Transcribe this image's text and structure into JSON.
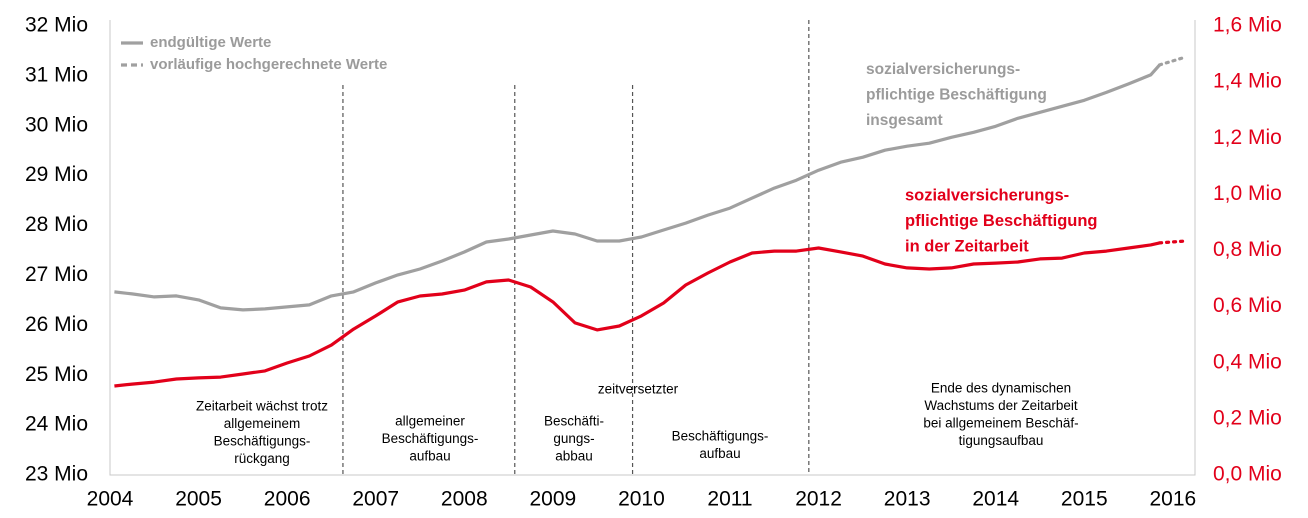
{
  "chart_data": {
    "type": "line",
    "x": [
      2004.05,
      2004.25,
      2004.5,
      2004.75,
      2005,
      2005.25,
      2005.5,
      2005.75,
      2006,
      2006.25,
      2006.5,
      2006.75,
      2007,
      2007.25,
      2007.5,
      2007.75,
      2008,
      2008.25,
      2008.5,
      2008.75,
      2009,
      2009.25,
      2009.5,
      2009.75,
      2010,
      2010.25,
      2010.5,
      2010.75,
      2011,
      2011.25,
      2011.5,
      2011.75,
      2012,
      2012.25,
      2012.5,
      2012.75,
      2013,
      2013.25,
      2013.5,
      2013.75,
      2014,
      2014.25,
      2014.5,
      2014.75,
      2015,
      2015.25,
      2015.5,
      2015.75,
      2015.85,
      2016.15
    ],
    "series": [
      {
        "name": "sozialversicherungs-pflichtige Beschäftigung insgesamt",
        "name_lines": [
          "sozialversicherungs-",
          "pflichtige Beschäftigung",
          "insgesamt"
        ],
        "color": "#a0a0a0",
        "axis": "y",
        "values": [
          26.67,
          26.63,
          26.57,
          26.59,
          26.51,
          26.35,
          26.31,
          26.33,
          26.37,
          26.41,
          26.59,
          26.67,
          26.85,
          27.01,
          27.13,
          27.29,
          27.47,
          27.67,
          27.73,
          27.81,
          27.89,
          27.83,
          27.69,
          27.69,
          27.77,
          27.91,
          28.05,
          28.21,
          28.35,
          28.55,
          28.75,
          28.91,
          29.11,
          29.27,
          29.37,
          29.51,
          29.59,
          29.65,
          29.77,
          29.87,
          29.99,
          30.15,
          30.27,
          30.39,
          30.51,
          30.67,
          30.84,
          31.02,
          31.22,
          null
        ],
        "provisional_values": [
          null,
          null,
          null,
          null,
          null,
          null,
          null,
          null,
          null,
          null,
          null,
          null,
          null,
          null,
          null,
          null,
          null,
          null,
          null,
          null,
          null,
          null,
          null,
          null,
          null,
          null,
          null,
          null,
          null,
          null,
          null,
          null,
          null,
          null,
          null,
          null,
          null,
          null,
          null,
          null,
          null,
          null,
          null,
          null,
          null,
          null,
          null,
          null,
          31.22,
          31.38
        ]
      },
      {
        "name": "sozialversicherungs-pflichtige Beschäftigung in der Zeitarbeit",
        "name_lines": [
          "sozialversicherungs-",
          "pflichtige Beschäftigung",
          "in der Zeitarbeit"
        ],
        "color": "#e2001a",
        "axis": "y2",
        "values": [
          0.317,
          0.324,
          0.331,
          0.342,
          0.346,
          0.349,
          0.36,
          0.371,
          0.399,
          0.424,
          0.463,
          0.52,
          0.567,
          0.617,
          0.638,
          0.645,
          0.659,
          0.688,
          0.695,
          0.67,
          0.617,
          0.542,
          0.517,
          0.531,
          0.567,
          0.613,
          0.677,
          0.72,
          0.759,
          0.791,
          0.798,
          0.798,
          0.809,
          0.795,
          0.78,
          0.752,
          0.738,
          0.734,
          0.738,
          0.752,
          0.755,
          0.759,
          0.77,
          0.773,
          0.791,
          0.798,
          0.809,
          0.82,
          0.827,
          null
        ],
        "provisional_values": [
          null,
          null,
          null,
          null,
          null,
          null,
          null,
          null,
          null,
          null,
          null,
          null,
          null,
          null,
          null,
          null,
          null,
          null,
          null,
          null,
          null,
          null,
          null,
          null,
          null,
          null,
          null,
          null,
          null,
          null,
          null,
          null,
          null,
          null,
          null,
          null,
          null,
          null,
          null,
          null,
          null,
          null,
          null,
          null,
          null,
          null,
          null,
          null,
          0.827,
          0.834
        ]
      }
    ],
    "legend": [
      "endgültige Werte",
      "vorläufige hochgerechnete Werte"
    ],
    "xlim": [
      2004,
      2016.25
    ],
    "xticks": [
      2004,
      2005,
      2006,
      2007,
      2008,
      2009,
      2010,
      2011,
      2012,
      2013,
      2014,
      2015,
      2016
    ],
    "ylim": [
      23,
      32
    ],
    "yticks": [
      {
        "value": 23,
        "label": "23 Mio"
      },
      {
        "value": 24,
        "label": "24 Mio"
      },
      {
        "value": 25,
        "label": "25 Mio"
      },
      {
        "value": 26,
        "label": "26 Mio"
      },
      {
        "value": 27,
        "label": "27 Mio"
      },
      {
        "value": 28,
        "label": "28 Mio"
      },
      {
        "value": 29,
        "label": "29 Mio"
      },
      {
        "value": 30,
        "label": "30 Mio"
      },
      {
        "value": 31,
        "label": "31 Mio"
      },
      {
        "value": 32,
        "label": "32 Mio"
      }
    ],
    "y2lim": [
      0,
      1.6
    ],
    "y2ticks": [
      {
        "value": 0,
        "label": "0,0 Mio"
      },
      {
        "value": 0.2,
        "label": "0,2 Mio"
      },
      {
        "value": 0.4,
        "label": "0,4 Mio"
      },
      {
        "value": 0.6,
        "label": "0,6 Mio"
      },
      {
        "value": 0.8,
        "label": "0,8 Mio"
      },
      {
        "value": 1.0,
        "label": "1,0 Mio"
      },
      {
        "value": 1.2,
        "label": "1,2 Mio"
      },
      {
        "value": 1.4,
        "label": "1,4 Mio"
      },
      {
        "value": 1.6,
        "label": "1,6 Mio"
      }
    ],
    "phase_boundaries": [
      2006.63,
      2008.57,
      2009.9,
      2011.89
    ],
    "annotations": [
      {
        "lines": [
          "Zeitarbeit wächst trotz",
          "allgemeinem",
          "Beschäftigungs-",
          "rückgang"
        ]
      },
      {
        "lines": [
          "allgemeiner",
          "Beschäftigungs-",
          "aufbau"
        ]
      },
      {
        "lines": [
          "Beschäfti-",
          "gungs-",
          "abbau"
        ]
      },
      {
        "lines": [
          "zeitversetzter"
        ]
      },
      {
        "lines": [
          "Beschäftigungs-",
          "aufbau"
        ]
      },
      {
        "lines": [
          "Ende des dynamischen",
          "Wachstums der Zeitarbeit",
          "bei allgemeinem Beschäf-",
          "tigungsaufbau"
        ]
      }
    ]
  }
}
